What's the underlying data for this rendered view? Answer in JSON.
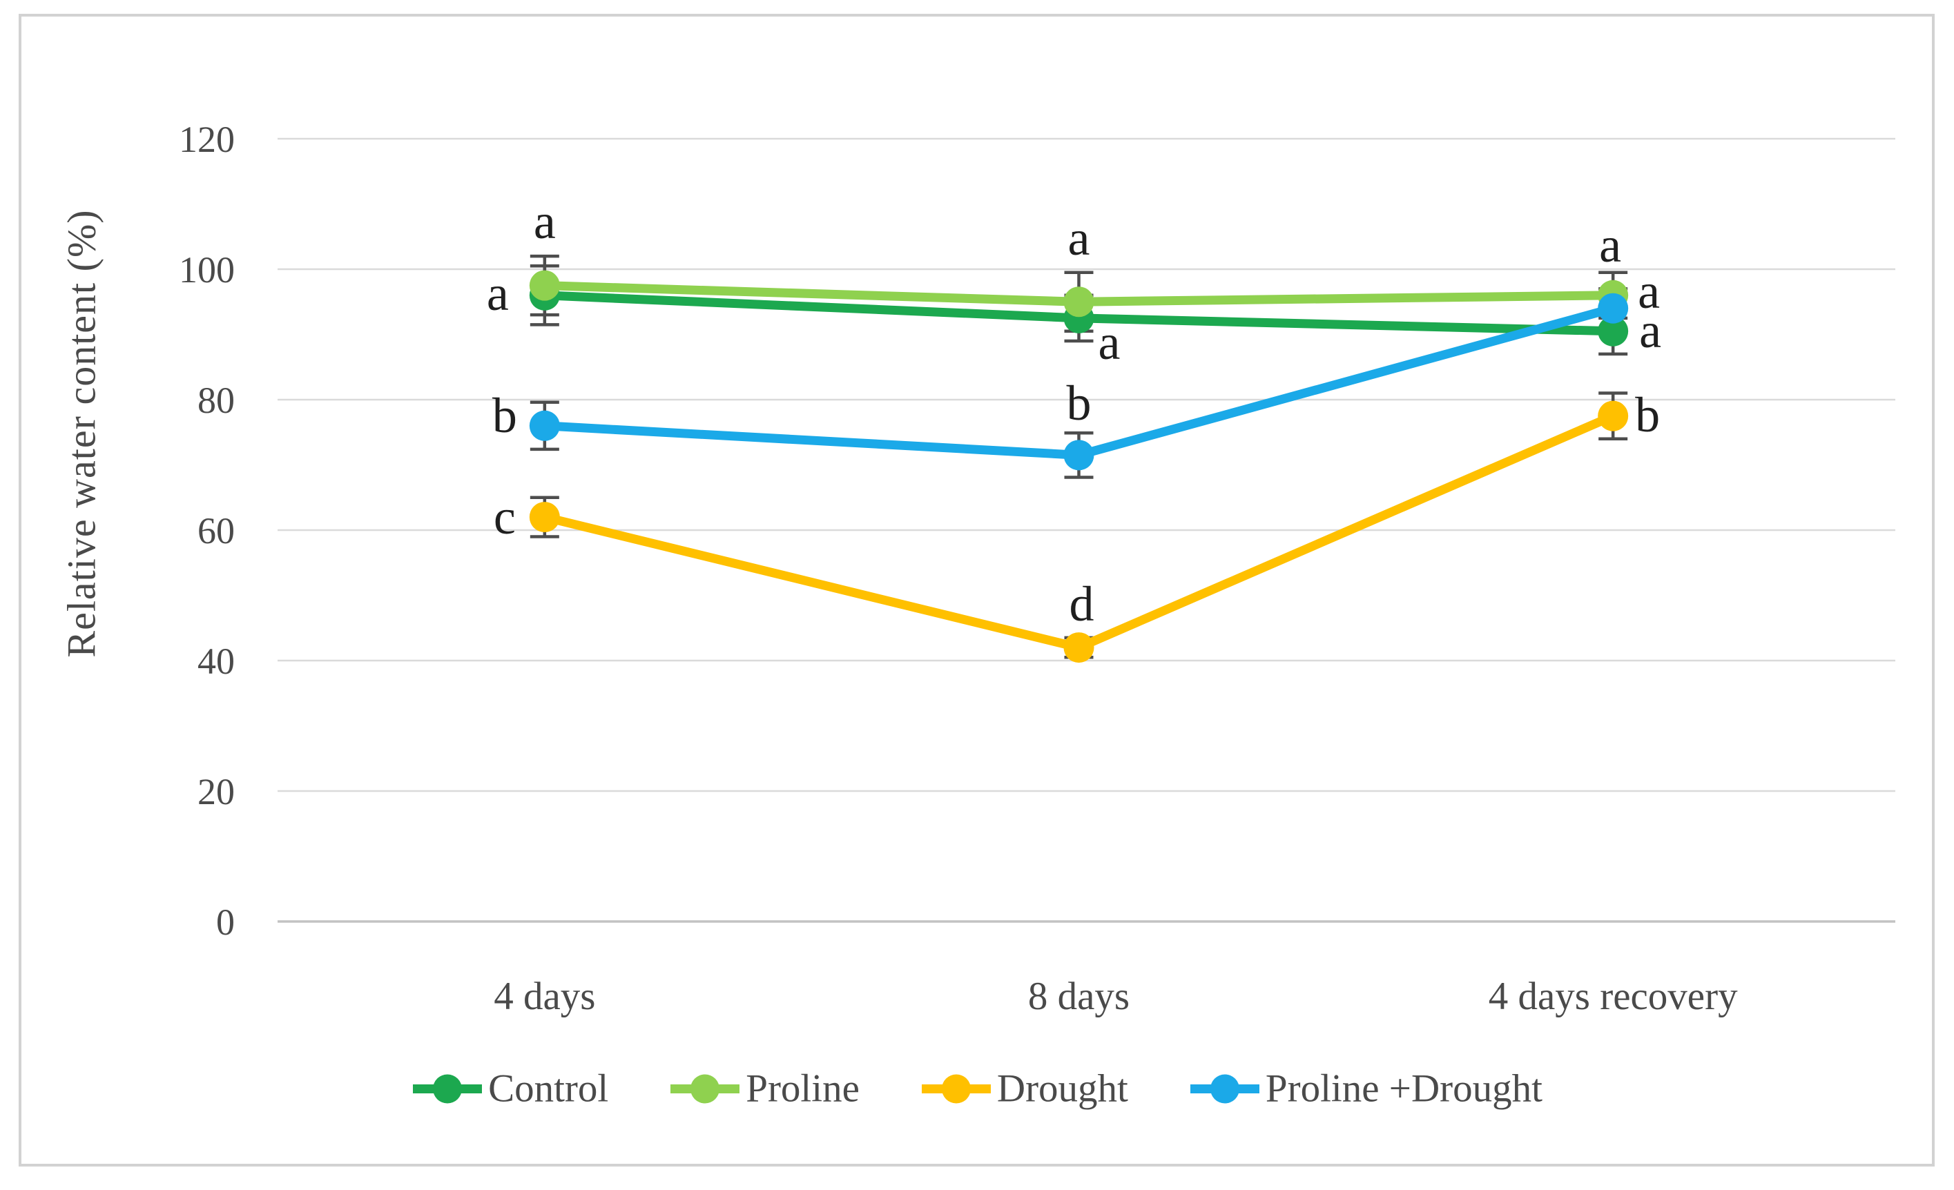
{
  "figure": {
    "background": "#ffffff",
    "frame_color": "#d2d2d2"
  },
  "chart_data": {
    "type": "line",
    "title": "",
    "xlabel": "",
    "ylabel": "Relative water content (%)",
    "categories": [
      "4 days",
      "8 days",
      "4 days recovery"
    ],
    "yticks": [
      "120",
      "100",
      "80",
      "60",
      "40",
      "20",
      "0"
    ],
    "ytick_values": [
      120,
      100,
      80,
      60,
      40,
      20,
      0
    ],
    "ylim": [
      0,
      120
    ],
    "grid": "horizontal",
    "gridline_color": "#dadada",
    "axis_line_color": "#c3c3c3",
    "error_bar_color": "#4d4d4d",
    "legend_position": "bottom",
    "series": [
      {
        "name": "Control",
        "color": "#1CA84F",
        "values": [
          96,
          92.5,
          90.5
        ],
        "errors": [
          4.5,
          3.5,
          3.5
        ]
      },
      {
        "name": "Proline",
        "color": "#8FD14F",
        "values": [
          97.5,
          95,
          96
        ],
        "errors": [
          4.5,
          4.5,
          3.5
        ]
      },
      {
        "name": "Drought",
        "color": "#FFC000",
        "values": [
          62,
          42,
          77.5
        ],
        "errors": [
          3,
          1.5,
          3.5
        ]
      },
      {
        "name": "Proline +Drought",
        "color": "#1BA9E8",
        "values": [
          76,
          71.5,
          94
        ],
        "errors": [
          3.6,
          3.4,
          3
        ]
      }
    ],
    "annotations": [
      {
        "category": 0,
        "text": "a",
        "value": 107.5,
        "dx": 0
      },
      {
        "category": 0,
        "text": "a",
        "value": 96.5,
        "dx": -68
      },
      {
        "category": 0,
        "text": "b",
        "value": 77.8,
        "dx": -58
      },
      {
        "category": 0,
        "text": "c",
        "value": 62.2,
        "dx": -58
      },
      {
        "category": 1,
        "text": "a",
        "value": 105,
        "dx": 0
      },
      {
        "category": 1,
        "text": "a",
        "value": 89,
        "dx": 44
      },
      {
        "category": 1,
        "text": "b",
        "value": 79.7,
        "dx": 0
      },
      {
        "category": 1,
        "text": "d",
        "value": 48.9,
        "dx": 4
      },
      {
        "category": 2,
        "text": "a",
        "value": 103.9,
        "dx": -4
      },
      {
        "category": 2,
        "text": "a",
        "value": 96.8,
        "dx": 52
      },
      {
        "category": 2,
        "text": "a",
        "value": 90.8,
        "dx": 54
      },
      {
        "category": 2,
        "text": "b",
        "value": 77.9,
        "dx": 50
      }
    ]
  }
}
